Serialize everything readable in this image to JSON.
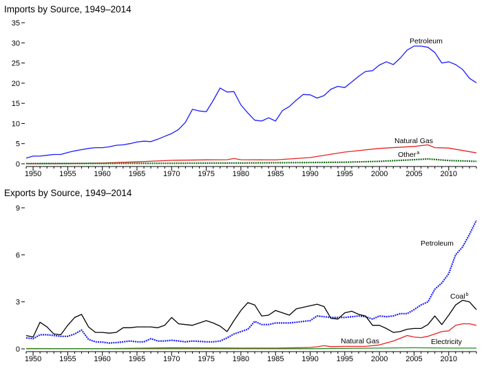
{
  "chart_data": [
    {
      "type": "line",
      "title": "Imports by Source, 1949–2014",
      "xlim": [
        1949,
        2014
      ],
      "ylim": [
        0,
        35
      ],
      "yticks": [
        "0",
        "5",
        "10",
        "15",
        "20",
        "25",
        "30",
        "35"
      ],
      "xticks": [
        "1950",
        "1955",
        "1960",
        "1965",
        "1970",
        "1975",
        "1980",
        "1985",
        "1990",
        "1995",
        "2000",
        "2005",
        "2010"
      ],
      "labels": {
        "petroleum": "Petroleum",
        "natural_gas": "Natural Gas",
        "other": "Other",
        "other_sup": "a"
      },
      "series": [
        {
          "key": "petroleum",
          "color": "#1a1aff",
          "style": "solid",
          "x": [
            1949,
            1950,
            1951,
            1952,
            1953,
            1954,
            1955,
            1956,
            1957,
            1958,
            1959,
            1960,
            1961,
            1962,
            1963,
            1964,
            1965,
            1966,
            1967,
            1968,
            1969,
            1970,
            1971,
            1972,
            1973,
            1974,
            1975,
            1976,
            1977,
            1978,
            1979,
            1980,
            1981,
            1982,
            1983,
            1984,
            1985,
            1986,
            1987,
            1988,
            1989,
            1990,
            1991,
            1992,
            1993,
            1994,
            1995,
            1996,
            1997,
            1998,
            1999,
            2000,
            2001,
            2002,
            2003,
            2004,
            2005,
            2006,
            2007,
            2008,
            2009,
            2010,
            2011,
            2012,
            2013,
            2014
          ],
          "y": [
            1.4,
            1.9,
            1.9,
            2.1,
            2.3,
            2.3,
            2.8,
            3.2,
            3.5,
            3.8,
            4.0,
            4.0,
            4.2,
            4.6,
            4.7,
            5.0,
            5.4,
            5.6,
            5.5,
            6.1,
            6.8,
            7.5,
            8.5,
            10.3,
            13.5,
            13.1,
            12.9,
            15.7,
            18.8,
            17.8,
            17.9,
            14.6,
            12.6,
            10.8,
            10.6,
            11.4,
            10.6,
            13.2,
            14.2,
            15.8,
            17.2,
            17.1,
            16.3,
            16.9,
            18.5,
            19.2,
            18.9,
            20.3,
            21.7,
            22.9,
            23.1,
            24.5,
            25.3,
            24.6,
            26.2,
            28.2,
            29.2,
            29.2,
            28.9,
            27.6,
            25.0,
            25.3,
            24.6,
            23.4,
            21.2,
            20.1
          ]
        },
        {
          "key": "natural_gas",
          "color": "#e8201f",
          "style": "solid",
          "x": [
            1949,
            1955,
            1960,
            1965,
            1970,
            1975,
            1978,
            1979,
            1980,
            1985,
            1990,
            1995,
            2000,
            2005,
            2007,
            2008,
            2010,
            2014
          ],
          "y": [
            0,
            0.05,
            0.17,
            0.47,
            0.85,
            0.98,
            1.0,
            1.3,
            1.0,
            0.95,
            1.53,
            2.9,
            3.8,
            4.3,
            4.7,
            4.0,
            3.9,
            2.7
          ]
        },
        {
          "key": "other",
          "color": "#0d6b0d",
          "style": "dashed",
          "x": [
            1949,
            1960,
            1970,
            1980,
            1990,
            1995,
            2000,
            2005,
            2007,
            2010,
            2014
          ],
          "y": [
            0.05,
            0.08,
            0.12,
            0.18,
            0.3,
            0.4,
            0.6,
            1.0,
            1.2,
            0.8,
            0.6
          ]
        }
      ]
    },
    {
      "type": "line",
      "title": "Exports by Source, 1949–2014",
      "xlim": [
        1949,
        2014
      ],
      "ylim": [
        0,
        9
      ],
      "yticks": [
        "0",
        "3",
        "6",
        "9"
      ],
      "xticks": [
        "1950",
        "1955",
        "1960",
        "1965",
        "1970",
        "1975",
        "1980",
        "1985",
        "1990",
        "1995",
        "2000",
        "2005",
        "2010"
      ],
      "labels": {
        "petroleum": "Petroleum",
        "coal": "Coal",
        "coal_sup": "b",
        "natural_gas": "Natural Gas",
        "electricity": "Electricity"
      },
      "series": [
        {
          "key": "petroleum",
          "color": "#1a1aff",
          "style": "dashed",
          "x": [
            1949,
            1950,
            1951,
            1952,
            1953,
            1954,
            1955,
            1956,
            1957,
            1958,
            1959,
            1960,
            1961,
            1962,
            1963,
            1964,
            1965,
            1966,
            1967,
            1968,
            1969,
            1970,
            1971,
            1972,
            1973,
            1974,
            1975,
            1976,
            1977,
            1978,
            1979,
            1980,
            1981,
            1982,
            1983,
            1984,
            1985,
            1986,
            1987,
            1988,
            1989,
            1990,
            1991,
            1992,
            1993,
            1994,
            1995,
            1996,
            1997,
            1998,
            1999,
            2000,
            2001,
            2002,
            2003,
            2004,
            2005,
            2006,
            2007,
            2008,
            2009,
            2010,
            2011,
            2012,
            2013,
            2014
          ],
          "y": [
            0.7,
            0.65,
            0.9,
            0.9,
            0.85,
            0.8,
            0.8,
            0.95,
            1.2,
            0.6,
            0.45,
            0.43,
            0.37,
            0.4,
            0.45,
            0.5,
            0.45,
            0.45,
            0.65,
            0.5,
            0.5,
            0.55,
            0.5,
            0.45,
            0.5,
            0.48,
            0.45,
            0.45,
            0.5,
            0.7,
            0.95,
            1.1,
            1.25,
            1.75,
            1.55,
            1.55,
            1.65,
            1.65,
            1.65,
            1.7,
            1.75,
            1.8,
            2.1,
            2.05,
            2.0,
            2.0,
            2.0,
            2.05,
            2.1,
            2.05,
            1.9,
            2.1,
            2.05,
            2.1,
            2.25,
            2.25,
            2.5,
            2.8,
            3.0,
            3.8,
            4.2,
            4.8,
            6.0,
            6.5,
            7.3,
            8.2
          ]
        },
        {
          "key": "coal",
          "color": "#000000",
          "style": "solid",
          "x": [
            1949,
            1950,
            1951,
            1952,
            1953,
            1954,
            1955,
            1956,
            1957,
            1958,
            1959,
            1960,
            1961,
            1962,
            1963,
            1964,
            1965,
            1966,
            1967,
            1968,
            1969,
            1970,
            1971,
            1972,
            1973,
            1974,
            1975,
            1976,
            1977,
            1978,
            1979,
            1980,
            1981,
            1982,
            1983,
            1984,
            1985,
            1986,
            1987,
            1988,
            1989,
            1990,
            1991,
            1992,
            1993,
            1994,
            1995,
            1996,
            1997,
            1998,
            1999,
            2000,
            2001,
            2002,
            2003,
            2004,
            2005,
            2006,
            2007,
            2008,
            2009,
            2010,
            2011,
            2012,
            2013,
            2014
          ],
          "y": [
            0.85,
            0.75,
            1.7,
            1.4,
            0.95,
            0.9,
            1.5,
            2.0,
            2.2,
            1.4,
            1.05,
            1.05,
            1.0,
            1.05,
            1.35,
            1.35,
            1.4,
            1.4,
            1.4,
            1.35,
            1.5,
            2.0,
            1.6,
            1.55,
            1.5,
            1.65,
            1.8,
            1.65,
            1.45,
            1.1,
            1.8,
            2.45,
            2.95,
            2.8,
            2.1,
            2.15,
            2.45,
            2.3,
            2.15,
            2.55,
            2.65,
            2.75,
            2.85,
            2.7,
            1.95,
            1.9,
            2.3,
            2.4,
            2.2,
            2.1,
            1.5,
            1.5,
            1.3,
            1.05,
            1.1,
            1.25,
            1.3,
            1.3,
            1.55,
            2.1,
            1.55,
            2.15,
            2.8,
            3.1,
            3.0,
            2.5
          ]
        },
        {
          "key": "natural_gas",
          "color": "#e8201f",
          "style": "solid",
          "x": [
            1949,
            1960,
            1970,
            1980,
            1985,
            1988,
            1990,
            1991,
            1992,
            1993,
            1995,
            1998,
            2000,
            2002,
            2004,
            2005,
            2006,
            2007,
            2008,
            2009,
            2010,
            2011,
            2012,
            2013,
            2014
          ],
          "y": [
            0.02,
            0.01,
            0.07,
            0.05,
            0.05,
            0.07,
            0.09,
            0.13,
            0.2,
            0.14,
            0.16,
            0.16,
            0.25,
            0.5,
            0.85,
            0.75,
            0.72,
            0.8,
            0.95,
            1.1,
            1.15,
            1.5,
            1.6,
            1.6,
            1.5
          ]
        },
        {
          "key": "electricity",
          "color": "#1f8a1f",
          "style": "solid",
          "x": [
            1949,
            1960,
            1980,
            1990,
            2000,
            2005,
            2010,
            2014
          ],
          "y": [
            0.01,
            0.01,
            0.01,
            0.01,
            0.05,
            0.07,
            0.05,
            0.05
          ]
        }
      ]
    }
  ]
}
